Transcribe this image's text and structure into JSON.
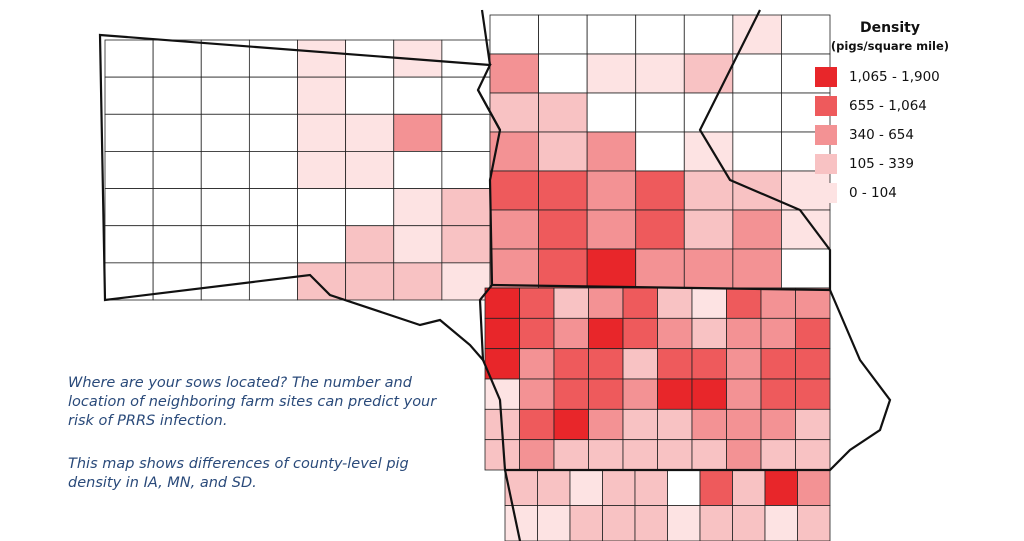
{
  "legend": {
    "title": "Density",
    "subtitle": "(pigs/square mile)",
    "items": [
      {
        "label": "1,065 - 1,900",
        "color": "#e8262a"
      },
      {
        "label": "655 - 1,064",
        "color": "#ee5a5c"
      },
      {
        "label": "340 - 654",
        "color": "#f39294"
      },
      {
        "label": "105 - 339",
        "color": "#f8c2c3"
      },
      {
        "label": "0 - 104",
        "color": "#fde3e3"
      }
    ]
  },
  "text": {
    "paragraphs": [
      "Where are your sows located? The number and location of neighboring farm sites can predict your risk of PRRS infection.",
      "This map shows differences of county-level pig density in IA, MN, and SD."
    ]
  }
}
